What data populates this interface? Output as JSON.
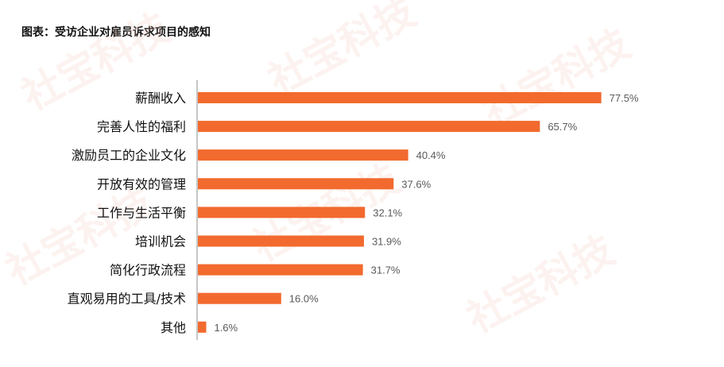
{
  "chart_data": {
    "type": "bar",
    "orientation": "horizontal",
    "title": "图表：受访企业对雇员诉求项目的感知",
    "categories": [
      "薪酬收入",
      "完善人性的福利",
      "激励员工的企业文化",
      "开放有效的管理",
      "工作与生活平衡",
      "培训机会",
      "简化行政流程",
      "直观易用的工具/技术",
      "其他"
    ],
    "values": [
      77.5,
      65.7,
      40.4,
      37.6,
      32.1,
      31.9,
      31.7,
      16.0,
      1.6
    ],
    "value_labels": [
      "77.5%",
      "65.7%",
      "40.4%",
      "37.6%",
      "32.1%",
      "31.9%",
      "31.7%",
      "16.0%",
      "1.6%"
    ],
    "xlim": [
      0,
      100
    ],
    "grid": false,
    "bar_color": "#f26a2e"
  },
  "watermark": {
    "text": "社宝科技",
    "color": "#f3c9b8"
  }
}
